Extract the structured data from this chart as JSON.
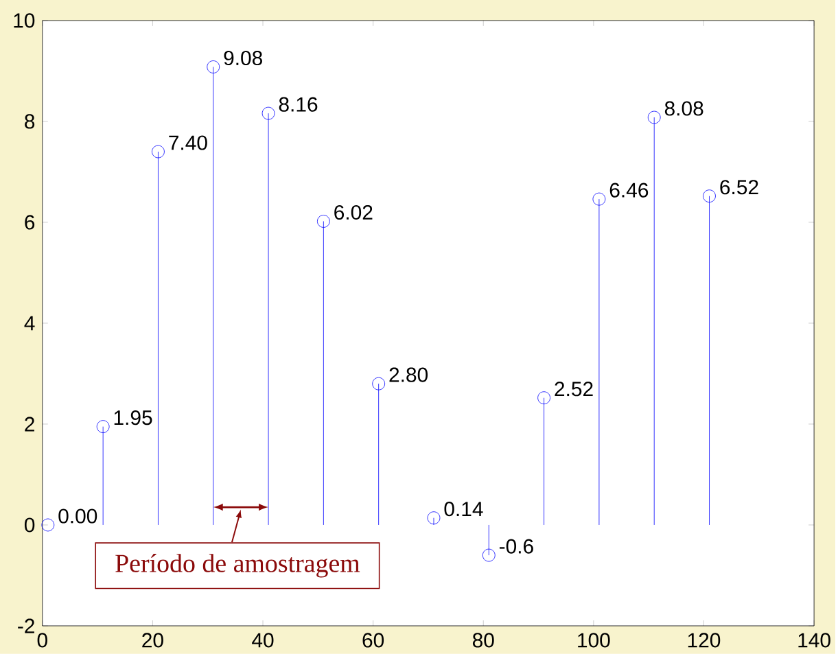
{
  "chart_data": {
    "type": "lollipop",
    "x": [
      1,
      11,
      21,
      31,
      41,
      51,
      61,
      71,
      81,
      91,
      101,
      111,
      121
    ],
    "values": [
      0.0,
      1.95,
      7.4,
      9.08,
      8.16,
      6.02,
      2.8,
      0.14,
      -0.6,
      2.52,
      6.46,
      8.08,
      6.52
    ],
    "value_labels": [
      "0.00",
      "1.95",
      "7.40",
      "9.08",
      "8.16",
      "6.02",
      "2.80",
      "0.14",
      "-0.6",
      "2.52",
      "6.46",
      "8.08",
      "6.52"
    ],
    "color": "#0000ff",
    "marker": "circle",
    "grid": false,
    "xlim": [
      0,
      140
    ],
    "ylim": [
      -2,
      10
    ],
    "xticks": [
      0,
      20,
      40,
      60,
      80,
      100,
      120,
      140
    ],
    "yticks": [
      -2,
      0,
      2,
      4,
      6,
      8,
      10
    ],
    "annotations": [
      "Período de amostragem"
    ]
  }
}
